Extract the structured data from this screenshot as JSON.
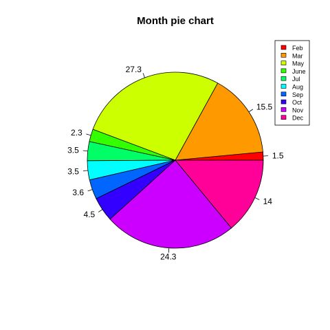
{
  "chart_data": {
    "type": "pie",
    "title": "Month pie chart",
    "categories": [
      "Feb",
      "Mar",
      "May",
      "June",
      "Jul",
      "Aug",
      "Sep",
      "Oct",
      "Nov",
      "Dec"
    ],
    "values": [
      1.5,
      15.5,
      27.3,
      2.3,
      3.5,
      3.5,
      3.6,
      4.5,
      24.3,
      14
    ],
    "colors": [
      "#FF0000",
      "#FF9900",
      "#CCFF00",
      "#33FF00",
      "#00FF66",
      "#00FFFF",
      "#0066FF",
      "#3300FF",
      "#CC00FF",
      "#FF0099"
    ],
    "start_angle_deg": 0,
    "direction": "counterclockwise",
    "legend": {
      "placement": "top-right",
      "entries": [
        "Feb",
        "Mar",
        "May",
        "June",
        "Jul",
        "Aug",
        "Sep",
        "Oct",
        "Nov",
        "Dec"
      ]
    }
  }
}
